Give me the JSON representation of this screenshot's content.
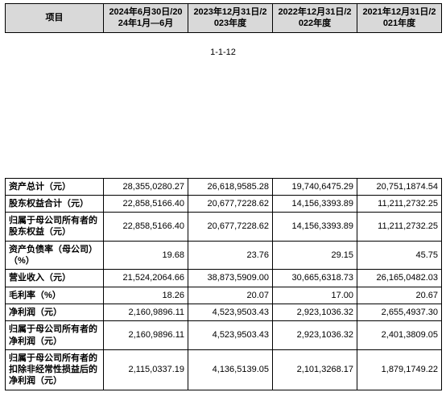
{
  "header": {
    "col0": "项目",
    "col1": "2024年6月30日/2024年1月—6月",
    "col2": "2023年12月31日/2023年度",
    "col3": "2022年12月31日/2022年度",
    "col4": "2021年12月31日/2021年度"
  },
  "page_number": "1-1-12",
  "rows": [
    {
      "label": "资产总计（元）",
      "v1": "28,355,0280.27",
      "v2": "26,618,9585.28",
      "v3": "19,740,6475.29",
      "v4": "20,751,1874.54"
    },
    {
      "label": "股东权益合计（元）",
      "v1": "22,858,5166.40",
      "v2": "20,677,7228.62",
      "v3": "14,156,3393.89",
      "v4": "11,211,2732.25"
    },
    {
      "label": "归属于母公司所有者的股东权益（元）",
      "v1": "22,858,5166.40",
      "v2": "20,677,7228.62",
      "v3": "14,156,3393.89",
      "v4": "11,211,2732.25"
    },
    {
      "label": "资产负债率（母公司）（%）",
      "v1": "19.68",
      "v2": "23.76",
      "v3": "29.15",
      "v4": "45.75"
    },
    {
      "label": "营业收入（元）",
      "v1": "21,524,2064.66",
      "v2": "38,873,5909.00",
      "v3": "30,665,6318.73",
      "v4": "26,165,0482.03"
    },
    {
      "label": "毛利率（%）",
      "v1": "18.26",
      "v2": "20.07",
      "v3": "17.00",
      "v4": "20.67"
    },
    {
      "label": "净利润（元）",
      "v1": "2,160,9896.11",
      "v2": "4,523,9503.43",
      "v3": "2,923,1036.32",
      "v4": "2,655,4937.30"
    },
    {
      "label": "归属于母公司所有者的净利润（元）",
      "v1": "2,160,9896.11",
      "v2": "4,523,9503.43",
      "v3": "2,923,1036.32",
      "v4": "2,401,3809.05"
    },
    {
      "label": "归属于母公司所有者的扣除非经常性损益后的净利润（元）",
      "v1": "2,115,0337.19",
      "v2": "4,136,5139.05",
      "v3": "2,101,3268.17",
      "v4": "1,879,1749.22"
    }
  ],
  "colors": {
    "header_bg": "#d9d9d9",
    "border": "#000000",
    "text": "#000000",
    "background": "#ffffff"
  },
  "fontsize_pt": 11
}
